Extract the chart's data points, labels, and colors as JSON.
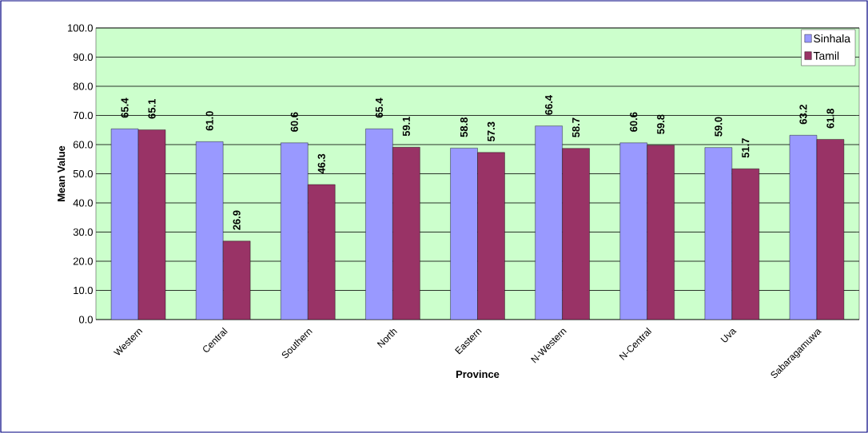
{
  "chart_data": {
    "type": "bar",
    "xlabel": "Province",
    "ylabel": "Mean Value",
    "categories": [
      "Western",
      "Central",
      "Southern",
      "North",
      "Eastern",
      "N-Western",
      "N-Central",
      "Uva",
      "Sabaragamuwa"
    ],
    "series": [
      {
        "name": "Sinhala",
        "color": "#9999ff",
        "values": [
          65.4,
          61.0,
          60.6,
          65.4,
          58.8,
          66.4,
          60.6,
          59.0,
          63.2
        ],
        "value_labels": [
          "65.4",
          "61.0",
          "60.6",
          "65.4",
          "58.8",
          "66.4",
          "60.6",
          "59.0",
          "63.2"
        ]
      },
      {
        "name": "Tamil",
        "color": "#993366",
        "values": [
          65.1,
          26.9,
          46.3,
          59.1,
          57.3,
          58.7,
          59.8,
          51.7,
          61.8
        ],
        "value_labels": [
          "65.1",
          "26.9",
          "46.3",
          "59.1",
          "57.3",
          "58.7",
          "59.8",
          "51.7",
          "61.8"
        ]
      }
    ],
    "ylim": [
      0,
      100
    ],
    "yticks": [
      {
        "value": 0,
        "label": "0.0"
      },
      {
        "value": 10,
        "label": "10.0"
      },
      {
        "value": 20,
        "label": "20.0"
      },
      {
        "value": 30,
        "label": "30.0"
      },
      {
        "value": 40,
        "label": "40.0"
      },
      {
        "value": 50,
        "label": "50.0"
      },
      {
        "value": 60,
        "label": "60.0"
      },
      {
        "value": 70,
        "label": "70.0"
      },
      {
        "value": 80,
        "label": "80.0"
      },
      {
        "value": 90,
        "label": "90.0"
      },
      {
        "value": 100,
        "label": "100.0"
      }
    ],
    "grid": "y",
    "legend": "top right"
  }
}
